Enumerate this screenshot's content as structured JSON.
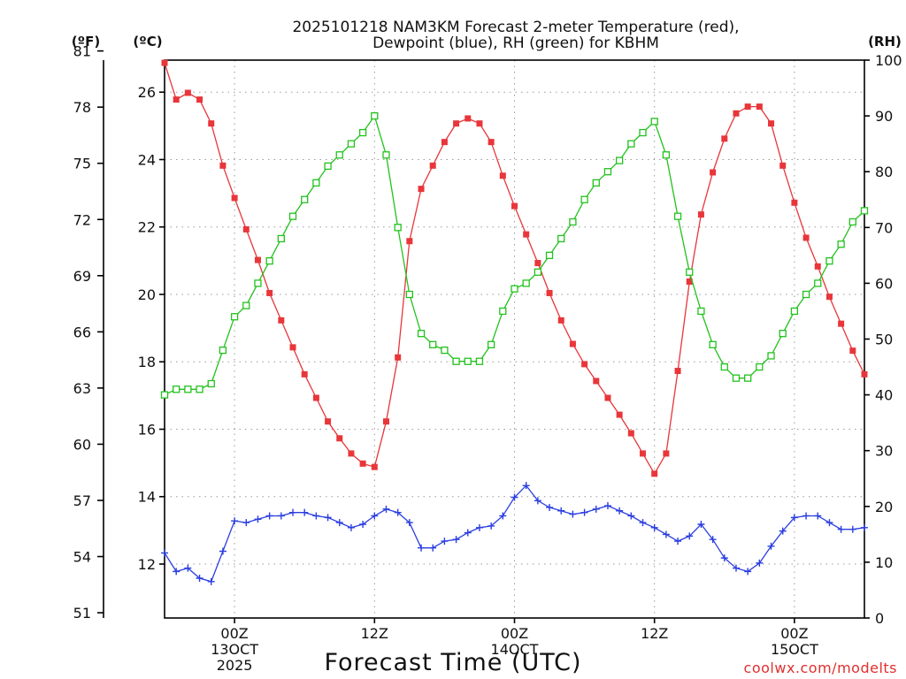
{
  "chart_data": {
    "type": "line",
    "title_line1": "2025101218 NAM3KM Forecast 2-meter Temperature (red),",
    "title_line2": "Dewpoint (blue), RH (green) for KBHM",
    "xlabel": "Forecast Time (UTC)",
    "credit": "coolwx.com/modelts",
    "left_f_unit": "(ºF)",
    "left_c_unit": "(ºC)",
    "right_unit": "(RH)",
    "x_range_hours": [
      18,
      78
    ],
    "x_ticks": [
      {
        "hour": 24,
        "lines": [
          "00Z",
          "13OCT",
          "2025"
        ]
      },
      {
        "hour": 36,
        "lines": [
          "12Z"
        ]
      },
      {
        "hour": 48,
        "lines": [
          "00Z",
          "14OCT"
        ]
      },
      {
        "hour": 60,
        "lines": [
          "12Z"
        ]
      },
      {
        "hour": 72,
        "lines": [
          "00Z",
          "15OCT"
        ]
      }
    ],
    "c_ylim": [
      10.4,
      26.95
    ],
    "c_ticks": [
      12,
      14,
      16,
      18,
      20,
      22,
      24,
      26
    ],
    "f_ticks": [
      51,
      54,
      57,
      60,
      63,
      66,
      69,
      72,
      75,
      78,
      81
    ],
    "rh_ylim": [
      0,
      100
    ],
    "rh_ticks": [
      0,
      10,
      20,
      30,
      40,
      50,
      60,
      70,
      80,
      90,
      100
    ],
    "series": [
      {
        "name": "2-meter Temperature",
        "units": "C",
        "color": "#e8363a",
        "marker": "filled-square",
        "hour_start": 18,
        "values": [
          26.87,
          25.78,
          25.98,
          25.78,
          25.07,
          23.82,
          22.86,
          21.93,
          21.02,
          20.04,
          19.23,
          18.43,
          17.63,
          16.93,
          16.23,
          15.73,
          15.28,
          14.98,
          14.88,
          16.23,
          18.13,
          21.58,
          23.13,
          23.82,
          24.52,
          25.07,
          25.22,
          25.07,
          24.52,
          23.52,
          22.62,
          21.78,
          20.93,
          20.04,
          19.23,
          18.53,
          17.93,
          17.43,
          16.93,
          16.43,
          15.88,
          15.28,
          14.68,
          15.28,
          17.73,
          20.38,
          22.37,
          23.62,
          24.62,
          25.37,
          25.57,
          25.57,
          25.07,
          23.82,
          22.72,
          21.68,
          20.83,
          19.93,
          19.13,
          18.33,
          17.63
        ]
      },
      {
        "name": "Dewpoint",
        "units": "C",
        "color": "#2b3ee0",
        "marker": "plus",
        "hour_start": 18,
        "values": [
          12.33,
          11.78,
          11.88,
          11.58,
          11.48,
          12.38,
          13.28,
          13.23,
          13.33,
          13.43,
          13.43,
          13.53,
          13.53,
          13.43,
          13.38,
          13.23,
          13.08,
          13.18,
          13.43,
          13.63,
          13.53,
          13.23,
          12.48,
          12.48,
          12.68,
          12.73,
          12.93,
          13.08,
          13.13,
          13.43,
          13.98,
          14.33,
          13.88,
          13.68,
          13.58,
          13.48,
          13.53,
          13.63,
          13.73,
          13.58,
          13.43,
          13.23,
          13.08,
          12.88,
          12.68,
          12.83,
          13.18,
          12.73,
          12.18,
          11.88,
          11.78,
          12.03,
          12.53,
          12.98,
          13.38,
          13.43,
          13.43,
          13.23,
          13.03,
          13.03,
          13.08
        ]
      },
      {
        "name": "Relative Humidity",
        "units": "%",
        "color": "#22c21d",
        "marker": "open-square",
        "hour_start": 18,
        "values": [
          40,
          41,
          41,
          41,
          42,
          48,
          54,
          56,
          60,
          64,
          68,
          72,
          75,
          78,
          81,
          83,
          85,
          87,
          90,
          83,
          70,
          58,
          51,
          49,
          48,
          46,
          46,
          46,
          49,
          55,
          59,
          60,
          62,
          65,
          68,
          71,
          75,
          78,
          80,
          82,
          85,
          87,
          89,
          83,
          72,
          62,
          55,
          49,
          45,
          43,
          43,
          45,
          47,
          51,
          55,
          58,
          60,
          64,
          67,
          71,
          73
        ]
      }
    ]
  }
}
